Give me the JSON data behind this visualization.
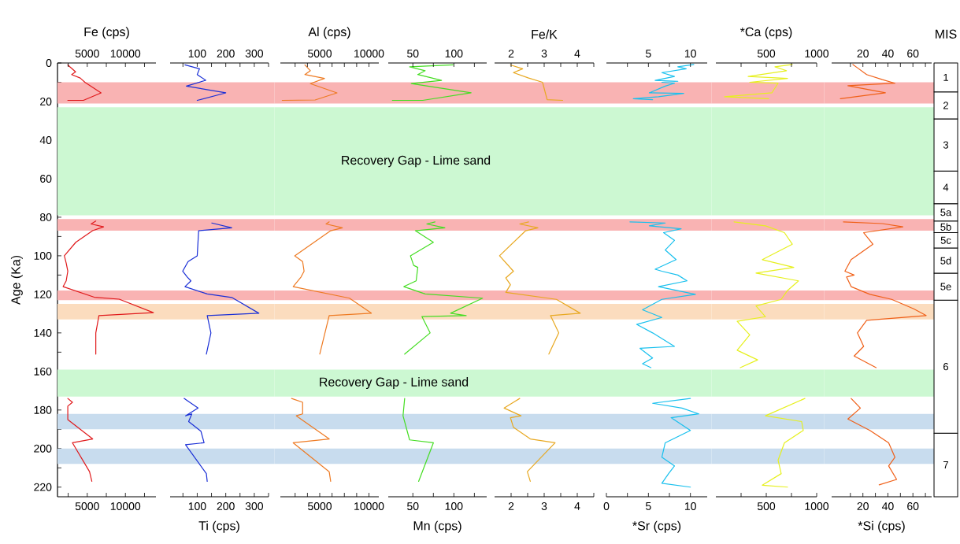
{
  "chart_data": [
    {
      "type": "line",
      "x2label": "Fe (cps)",
      "ylabel": "Age (Ka)",
      "xlim": [
        1100,
        14000
      ],
      "xticks": [
        {
          "value": 2500,
          "label": null
        },
        5000,
        {
          "value": 7500,
          "label": null
        },
        10000,
        {
          "value": 12500,
          "label": null
        }
      ],
      "x2lim": [
        1100,
        14000
      ],
      "x2ticks": [
        {
          "value": 2500,
          "label": null
        },
        5000,
        {
          "value": 7500,
          "label": null
        },
        10000,
        {
          "value": 12500,
          "label": null
        }
      ],
      "ylim": [
        225,
        0
      ],
      "yticks": [
        0,
        {
          "value": 10,
          "label": null
        },
        20,
        {
          "value": 30,
          "label": null
        },
        40,
        {
          "value": 50,
          "label": null
        },
        60,
        {
          "value": 70,
          "label": null
        },
        80,
        {
          "value": 90,
          "label": null
        },
        100,
        {
          "value": 110,
          "label": null
        },
        120,
        {
          "value": 130,
          "label": null
        },
        140,
        {
          "value": 150,
          "label": null
        },
        160,
        {
          "value": 170,
          "label": null
        },
        180,
        {
          "value": 190,
          "label": null
        },
        200,
        {
          "value": 210,
          "label": null
        },
        220
      ],
      "bands": [
        {
          "axis": "y",
          "from": 10,
          "to": 21,
          "color": "#f9b3b3"
        },
        {
          "axis": "y",
          "from": 23,
          "to": 79,
          "color": "#ccf8d2"
        },
        {
          "axis": "y",
          "from": 81,
          "to": 87,
          "color": "#f9b3b3"
        },
        {
          "axis": "y",
          "from": 118,
          "to": 123,
          "color": "#f9b3b3"
        },
        {
          "axis": "y",
          "from": 125,
          "to": 133,
          "color": "#fbdcbe"
        },
        {
          "axis": "y",
          "from": 159,
          "to": 173,
          "color": "#ccf8d2"
        },
        {
          "axis": "y",
          "from": 182,
          "to": 190,
          "color": "#c8dcee"
        },
        {
          "axis": "y",
          "from": 200,
          "to": 208,
          "color": "#c8dcee"
        }
      ],
      "series": [
        {
          "color": "#e0191b",
          "x": [
            2450,
            3470,
            2960,
            4080,
            4690,
            6810,
            4490,
            2450,
            null,
            6120,
            5510,
            7140,
            5700,
            3500,
            2000,
            2250,
            2450,
            2240,
            1840,
            5920,
            9180,
            13670,
            6530,
            6120,
            6120,
            null,
            2450,
            3060,
            2450,
            2450,
            5710,
            3060,
            5300,
            5600
          ],
          "values": [
            1,
            4.6,
            6,
            7.8,
            10,
            15.5,
            19.4,
            19.4,
            null,
            82,
            83.5,
            85,
            87,
            93,
            100,
            104,
            108,
            113,
            116,
            121.5,
            122.5,
            129.5,
            131,
            140,
            151,
            null,
            174,
            176,
            178,
            185,
            195,
            197,
            212,
            217
          ]
        }
      ]
    },
    {
      "type": "line",
      "xlabel": "Ti (cps)",
      "tick_labels": "x",
      "xlim": [
        5,
        350
      ],
      "xticks": [
        {
          "value": 50,
          "label": null
        },
        100,
        {
          "value": 150,
          "label": null
        },
        200,
        {
          "value": 250,
          "label": null
        },
        300,
        {
          "value": 350,
          "label": null
        }
      ],
      "x2lim": [
        5,
        350
      ],
      "x2ticks": [
        {
          "value": 50,
          "label": null
        },
        100,
        {
          "value": 150,
          "label": null
        },
        200,
        {
          "value": 250,
          "label": null
        },
        300,
        {
          "value": 350,
          "label": null
        }
      ],
      "ylim": [
        225,
        0
      ],
      "bands": [
        {
          "axis": "y",
          "from": 10,
          "to": 21,
          "color": "#f9b3b3"
        },
        {
          "axis": "y",
          "from": 23,
          "to": 79,
          "color": "#ccf8d2"
        },
        {
          "axis": "y",
          "from": 81,
          "to": 87,
          "color": "#f9b3b3"
        },
        {
          "axis": "y",
          "from": 118,
          "to": 123,
          "color": "#f9b3b3"
        },
        {
          "axis": "y",
          "from": 125,
          "to": 133,
          "color": "#fbdcbe"
        },
        {
          "axis": "y",
          "from": 159,
          "to": 173,
          "color": "#ccf8d2"
        },
        {
          "axis": "y",
          "from": 182,
          "to": 190,
          "color": "#c8dcee"
        },
        {
          "axis": "y",
          "from": 200,
          "to": 208,
          "color": "#c8dcee"
        }
      ],
      "series": [
        {
          "color": "#1a2fd6",
          "x": [
            57,
            108,
            100,
            130,
            62,
            200,
            100,
            null,
            151,
            221,
            105,
            100,
            68,
            49,
            65,
            78,
            57,
            135,
            221,
            316,
            135,
            148,
            132,
            null,
            54,
            103,
            59,
            81,
            70,
            113,
            124,
            59,
            132,
            135
          ],
          "values": [
            1,
            3,
            6,
            9,
            12,
            15.5,
            19.4,
            null,
            83,
            85.5,
            87,
            100,
            103,
            108,
            111,
            113,
            116,
            119.8,
            121.6,
            129.8,
            131,
            140,
            151,
            null,
            174,
            179,
            183,
            182,
            186,
            191,
            197,
            198,
            213,
            217
          ]
        }
      ]
    },
    {
      "type": "line",
      "x2label": "Al  (cps)",
      "tick_labels": "x",
      "xlim": [
        1000,
        11000
      ],
      "xticks": [
        {
          "value": 2500,
          "label": null
        },
        {
          "value": 3750,
          "label": null
        },
        5000,
        {
          "value": 6250,
          "label": null
        },
        {
          "value": 7500,
          "label": null
        },
        {
          "value": 8750,
          "label": null
        },
        10000
      ],
      "x2lim": [
        1000,
        11000
      ],
      "x2ticks": [
        {
          "value": 2500,
          "label": null
        },
        {
          "value": 3750,
          "label": null
        },
        5000,
        {
          "value": 6250,
          "label": null
        },
        {
          "value": 7500,
          "label": null
        },
        {
          "value": 8750,
          "label": null
        },
        10000
      ],
      "ylim": [
        225,
        0
      ],
      "bands": [
        {
          "axis": "y",
          "from": 10,
          "to": 21,
          "color": "#f9b3b3"
        },
        {
          "axis": "y",
          "from": 23,
          "to": 79,
          "color": "#ccf8d2"
        },
        {
          "axis": "y",
          "from": 81,
          "to": 87,
          "color": "#f9b3b3"
        },
        {
          "axis": "y",
          "from": 118,
          "to": 123,
          "color": "#f9b3b3"
        },
        {
          "axis": "y",
          "from": 125,
          "to": 133,
          "color": "#fbdcbe"
        },
        {
          "axis": "y",
          "from": 159,
          "to": 173,
          "color": "#ccf8d2"
        },
        {
          "axis": "y",
          "from": 182,
          "to": 190,
          "color": "#c8dcee"
        },
        {
          "axis": "y",
          "from": 200,
          "to": 208,
          "color": "#c8dcee"
        }
      ],
      "series": [
        {
          "color": "#ee7a22",
          "x": [
            3490,
            4050,
            3490,
            5480,
            4050,
            6750,
            4530,
            1190,
            null,
            5960,
            5640,
            7300,
            6110,
            2460,
            3260,
            3410,
            3100,
            2300,
            8020,
            10240,
            5960,
            5000,
            null,
            2140,
            3260,
            3260,
            2620,
            5960,
            2300,
            5960,
            6110
          ],
          "values": [
            1,
            4,
            6,
            8,
            10.7,
            15.5,
            19.2,
            19.4,
            null,
            82.4,
            83.5,
            85.5,
            87,
            100,
            103,
            108,
            111,
            116,
            122,
            129.8,
            131,
            151,
            null,
            174,
            176,
            182,
            183,
            195,
            197,
            212,
            217
          ]
        }
      ]
    },
    {
      "type": "line",
      "xlabel": "Mn (cps)",
      "tick_labels": "x",
      "xlim": [
        20,
        140
      ],
      "xticks": [
        50,
        {
          "value": 75,
          "label": null
        },
        100,
        {
          "value": 125,
          "label": null
        }
      ],
      "x2lim": [
        20,
        140
      ],
      "x2ticks": [
        50,
        {
          "value": 75,
          "label": null
        },
        100,
        {
          "value": 125,
          "label": null
        }
      ],
      "ylim": [
        225,
        0
      ],
      "bands": [
        {
          "axis": "y",
          "from": 10,
          "to": 21,
          "color": "#f9b3b3"
        },
        {
          "axis": "y",
          "from": 23,
          "to": 79,
          "color": "#ccf8d2",
          "label": "Recovery Gap - Lime sand"
        },
        {
          "axis": "y",
          "from": 81,
          "to": 87,
          "color": "#f9b3b3"
        },
        {
          "axis": "y",
          "from": 118,
          "to": 123,
          "color": "#f9b3b3"
        },
        {
          "axis": "y",
          "from": 125,
          "to": 133,
          "color": "#fbdcbe"
        },
        {
          "axis": "y",
          "from": 159,
          "to": 173,
          "color": "#ccf8d2",
          "label": "Recovery Gap - Lime sand"
        },
        {
          "axis": "y",
          "from": 182,
          "to": 190,
          "color": "#c8dcee"
        },
        {
          "axis": "y",
          "from": 200,
          "to": 208,
          "color": "#c8dcee"
        }
      ],
      "series": [
        {
          "color": "#44dd22",
          "x": [
            99,
            46,
            65,
            56,
            85,
            48,
            121,
            62,
            25,
            null,
            77,
            67,
            89,
            53,
            75,
            47,
            51,
            56,
            54,
            39,
            65,
            135,
            96,
            115,
            61,
            71,
            40,
            null,
            40,
            38,
            46,
            75,
            57
          ],
          "values": [
            1,
            2,
            4,
            6,
            9,
            10.7,
            15.5,
            19.4,
            19.4,
            null,
            82.4,
            83.5,
            85.5,
            87,
            93,
            100,
            105,
            106,
            113,
            116,
            119.8,
            122,
            129.8,
            131,
            131.5,
            140,
            151,
            null,
            174,
            183,
            195.5,
            197,
            217
          ]
        }
      ]
    },
    {
      "type": "line",
      "x2label": "Fe/K",
      "tick_labels": "x",
      "xlim": [
        1.5,
        4.5
      ],
      "xticks": [
        2,
        {
          "value": 2.5,
          "label": null
        },
        3,
        {
          "value": 3.5,
          "label": null
        },
        4,
        {
          "value": 4.5,
          "label": null
        }
      ],
      "x2lim": [
        1.5,
        4.5
      ],
      "x2ticks": [
        2,
        {
          "value": 2.5,
          "label": null
        },
        3,
        {
          "value": 3.5,
          "label": null
        },
        4,
        {
          "value": 4.5,
          "label": null
        }
      ],
      "ylim": [
        225,
        0
      ],
      "bands": [
        {
          "axis": "y",
          "from": 10,
          "to": 21,
          "color": "#f9b3b3"
        },
        {
          "axis": "y",
          "from": 23,
          "to": 79,
          "color": "#ccf8d2"
        },
        {
          "axis": "y",
          "from": 81,
          "to": 87,
          "color": "#f9b3b3"
        },
        {
          "axis": "y",
          "from": 118,
          "to": 123,
          "color": "#f9b3b3"
        },
        {
          "axis": "y",
          "from": 125,
          "to": 133,
          "color": "#fbdcbe"
        },
        {
          "axis": "y",
          "from": 159,
          "to": 173,
          "color": "#ccf8d2"
        },
        {
          "axis": "y",
          "from": 182,
          "to": 190,
          "color": "#c8dcee"
        },
        {
          "axis": "y",
          "from": 200,
          "to": 208,
          "color": "#c8dcee"
        }
      ],
      "series": [
        {
          "color": "#e8a820",
          "x": [
            1.98,
            2.35,
            2.07,
            2.53,
            2.95,
            3.09,
            3.56,
            null,
            2.53,
            2.26,
            2.81,
            2.44,
            1.65,
            2.07,
            1.84,
            1.98,
            1.84,
            3.37,
            4.09,
            3.19,
            3.44,
            3.14,
            null,
            2.26,
            1.79,
            2.3,
            1.98,
            2.07,
            2.58,
            3.33,
            2.49,
            2.58
          ],
          "values": [
            1,
            3,
            5,
            7.8,
            10,
            19,
            19.4,
            null,
            82.4,
            83.5,
            85.5,
            87,
            100,
            108,
            111.5,
            115,
            119,
            122.6,
            129.8,
            131,
            140,
            151,
            null,
            174,
            179,
            183,
            184,
            189,
            195,
            197,
            212,
            217
          ]
        }
      ]
    },
    {
      "type": "line",
      "xlabel": "*Sr (cps)",
      "tick_labels": "x",
      "xlim": [
        0,
        12
      ],
      "xticks": [
        0,
        {
          "value": 2.5,
          "label": null
        },
        5,
        {
          "value": 7.5,
          "label": null
        },
        10
      ],
      "x2lim": [
        0,
        12
      ],
      "x2ticks": [
        {
          "value": 2.5,
          "label": null
        },
        5,
        {
          "value": 7.5,
          "label": null
        },
        10
      ],
      "ylim": [
        225,
        0
      ],
      "bands": [
        {
          "axis": "y",
          "from": 10,
          "to": 21,
          "color": "#f9b3b3"
        },
        {
          "axis": "y",
          "from": 23,
          "to": 79,
          "color": "#ccf8d2"
        },
        {
          "axis": "y",
          "from": 81,
          "to": 87,
          "color": "#f9b3b3"
        },
        {
          "axis": "y",
          "from": 118,
          "to": 123,
          "color": "#f9b3b3"
        },
        {
          "axis": "y",
          "from": 125,
          "to": 133,
          "color": "#fbdcbe"
        },
        {
          "axis": "y",
          "from": 159,
          "to": 173,
          "color": "#ccf8d2"
        },
        {
          "axis": "y",
          "from": 182,
          "to": 190,
          "color": "#c8dcee"
        },
        {
          "axis": "y",
          "from": 200,
          "to": 208,
          "color": "#c8dcee"
        }
      ],
      "series": [
        {
          "color": "#18c0ee",
          "x": [
            10.4,
            8.5,
            9.5,
            6.6,
            8.1,
            5.8,
            8.5,
            6.6,
            8.1,
            7,
            5.1,
            9.2,
            6.2,
            3.2,
            5.5,
            null,
            2.8,
            7,
            5.1,
            8.9,
            6.8,
            8.1,
            7,
            8.3,
            5.8,
            6.6,
            8.5,
            9.6,
            6.2,
            10.6,
            6.6,
            4.3,
            6.6,
            3.6,
            5.5,
            8.1,
            4,
            5.5,
            4.3,
            5.3,
            null,
            10,
            5.5,
            9,
            11,
            7.7,
            10,
            7,
            6.6,
            8.1,
            7.4,
            6.6,
            10
          ],
          "values": [
            0.8,
            2,
            3,
            5,
            7,
            9,
            9.5,
            10,
            10.5,
            12,
            15.5,
            15.8,
            17.5,
            18.5,
            19,
            null,
            82.4,
            83,
            84.5,
            86,
            88,
            92,
            97,
            102,
            107,
            108,
            110,
            113,
            116,
            120,
            122.6,
            128,
            132,
            135.6,
            140,
            147,
            148,
            153,
            156,
            158,
            null,
            174,
            176.5,
            179,
            182,
            184,
            190.6,
            197,
            204.5,
            209,
            213,
            218,
            220
          ]
        }
      ]
    },
    {
      "type": "line",
      "x2label": "*Ca (cps)",
      "tick_labels": "x",
      "xlim": [
        0,
        1000
      ],
      "xticks": [
        {
          "value": 250,
          "label": null
        },
        500,
        {
          "value": 750,
          "label": null
        },
        1000
      ],
      "x2lim": [
        0,
        1000
      ],
      "x2ticks": [
        {
          "value": 250,
          "label": null
        },
        500,
        {
          "value": 750,
          "label": null
        },
        1000
      ],
      "ylim": [
        225,
        0
      ],
      "bands": [
        {
          "axis": "y",
          "from": 10,
          "to": 21,
          "color": "#f9b3b3"
        },
        {
          "axis": "y",
          "from": 23,
          "to": 79,
          "color": "#ccf8d2"
        },
        {
          "axis": "y",
          "from": 81,
          "to": 87,
          "color": "#f9b3b3"
        },
        {
          "axis": "y",
          "from": 118,
          "to": 123,
          "color": "#f9b3b3"
        },
        {
          "axis": "y",
          "from": 125,
          "to": 133,
          "color": "#fbdcbe"
        },
        {
          "axis": "y",
          "from": 159,
          "to": 173,
          "color": "#ccf8d2"
        },
        {
          "axis": "y",
          "from": 182,
          "to": 190,
          "color": "#c8dcee"
        },
        {
          "axis": "y",
          "from": 200,
          "to": 208,
          "color": "#c8dcee"
        }
      ],
      "series": [
        {
          "color": "#e6f01e",
          "x": [
            758,
            586,
            700,
            320,
            711,
            336,
            617,
            555,
            86,
            523,
            null,
            180,
            492,
            680,
            758,
            461,
            773,
            398,
            820,
            711,
            648,
            398,
            492,
            211,
            336,
            211,
            414,
            242,
            null,
            883,
            492,
            851,
            867,
            680,
            617,
            648,
            461,
            711
          ],
          "values": [
            0.8,
            2,
            4,
            7,
            8,
            10,
            10.5,
            15.5,
            17.5,
            18.5,
            null,
            82.4,
            84.5,
            88,
            94,
            102,
            106,
            109,
            113,
            118,
            122.6,
            126,
            131.6,
            134,
            141,
            149,
            154,
            158,
            null,
            174,
            183,
            186,
            190.6,
            197,
            206,
            213,
            219,
            220
          ]
        }
      ]
    },
    {
      "type": "line",
      "xlabel": "*Si (cps)",
      "tick_labels": "x",
      "xlim": [
        -5,
        75
      ],
      "xticks": [
        {
          "value": 10,
          "label": null
        },
        20,
        {
          "value": 30,
          "label": null
        },
        40,
        {
          "value": 50,
          "label": null
        },
        60,
        {
          "value": 70,
          "label": null
        }
      ],
      "x2lim": [
        -5,
        75
      ],
      "x2ticks": [
        {
          "value": 10,
          "label": null
        },
        20,
        {
          "value": 30,
          "label": null
        },
        40,
        {
          "value": 50,
          "label": null
        },
        60,
        {
          "value": 70,
          "label": null
        }
      ],
      "ylim": [
        225,
        0
      ],
      "bands": [
        {
          "axis": "y",
          "from": 10,
          "to": 21,
          "color": "#f9b3b3"
        },
        {
          "axis": "y",
          "from": 23,
          "to": 79,
          "color": "#ccf8d2"
        },
        {
          "axis": "y",
          "from": 81,
          "to": 87,
          "color": "#f9b3b3"
        },
        {
          "axis": "y",
          "from": 118,
          "to": 123,
          "color": "#f9b3b3"
        },
        {
          "axis": "y",
          "from": 125,
          "to": 133,
          "color": "#fbdcbe"
        },
        {
          "axis": "y",
          "from": 159,
          "to": 173,
          "color": "#ccf8d2"
        },
        {
          "axis": "y",
          "from": 182,
          "to": 190,
          "color": "#c8dcee"
        },
        {
          "axis": "y",
          "from": 200,
          "to": 208,
          "color": "#c8dcee"
        }
      ],
      "series": [
        {
          "color": "#f06018",
          "x": [
            12,
            15.6,
            23,
            35.6,
            45.6,
            8,
            38,
            2,
            null,
            4.4,
            35.6,
            52,
            20.6,
            28,
            10.6,
            5.6,
            13,
            6.9,
            10.6,
            25.6,
            43,
            60.6,
            70.6,
            23,
            15.6,
            20.6,
            13,
            30.6,
            null,
            10.6,
            18,
            8,
            25.6,
            40.6,
            45.6,
            40.6,
            47,
            33
          ],
          "values": [
            0.8,
            2.5,
            6,
            8.6,
            10.5,
            11.8,
            15.5,
            18.5,
            null,
            82.4,
            83.3,
            85,
            88,
            94,
            102,
            108,
            110,
            111,
            116,
            120,
            122.6,
            127.5,
            131,
            133.5,
            140,
            147,
            152,
            158,
            null,
            174,
            179,
            184.7,
            190.6,
            197,
            204.5,
            209,
            216,
            218.8
          ]
        }
      ]
    },
    {
      "type": "bar",
      "stacked": true,
      "title": "MIS",
      "categories": [
        null
      ],
      "ylim": [
        225,
        0
      ],
      "tick_labels": false,
      "series": [
        {
          "name": "1",
          "color": "#ffffff",
          "values": [
            15
          ]
        },
        {
          "name": "2",
          "color": "#ffffff",
          "values": [
            14
          ]
        },
        {
          "name": "3",
          "color": "#ffffff",
          "values": [
            27
          ]
        },
        {
          "name": "4",
          "color": "#ffffff",
          "values": [
            17
          ]
        },
        {
          "name": "5a",
          "color": "#ffffff",
          "values": [
            9
          ]
        },
        {
          "name": "5b",
          "color": "#ffffff",
          "values": [
            6
          ]
        },
        {
          "name": "5c",
          "color": "#ffffff",
          "values": [
            8
          ]
        },
        {
          "name": "5d",
          "color": "#ffffff",
          "values": [
            13
          ]
        },
        {
          "name": "5e",
          "color": "#ffffff",
          "values": [
            14
          ]
        },
        {
          "name": "6",
          "color": "#ffffff",
          "values": [
            69
          ]
        },
        {
          "name": "7",
          "color": "#ffffff",
          "values": [
            33
          ]
        }
      ]
    }
  ]
}
